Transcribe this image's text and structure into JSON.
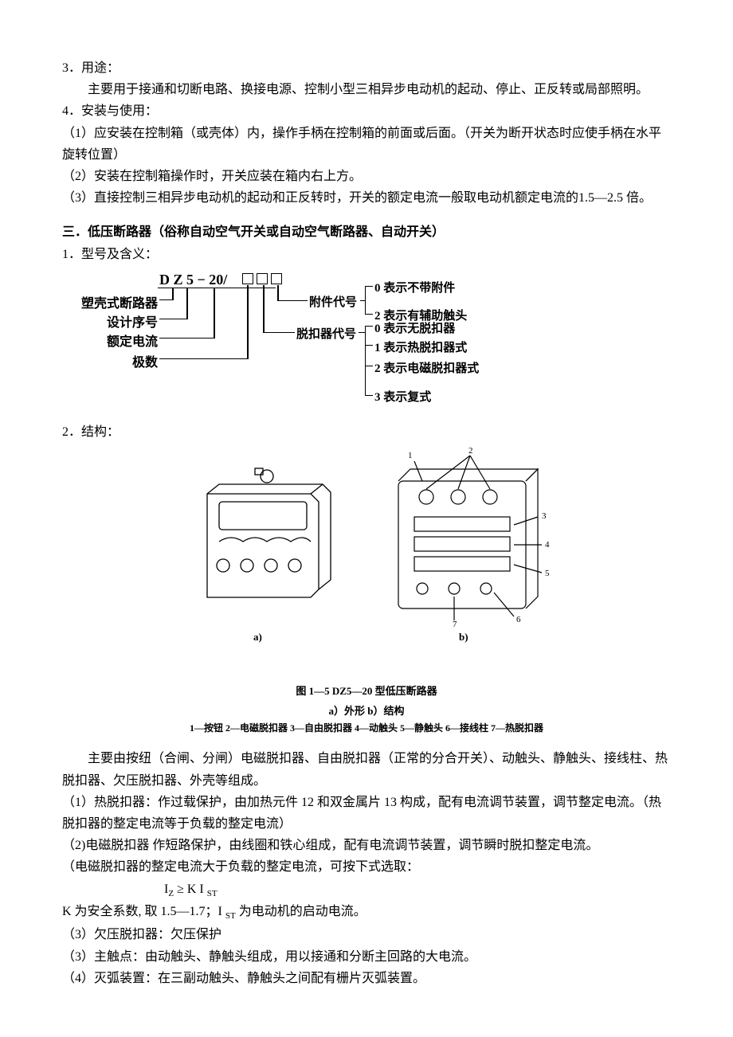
{
  "section3": {
    "title": "3．用途：",
    "p1": "主要用于接通和切断电路、换接电源、控制小型三相异步电动机的起动、停止、正反转或局部照明。"
  },
  "section4": {
    "title": "4．安装与使用：",
    "i1": "（1）应安装在控制箱（或壳体）内，操作手柄在控制箱的前面或后面。（开关为断开状态时应使手柄在水平旋转位置）",
    "i2": "（2）安装在控制箱操作时，开关应装在箱内右上方。",
    "i3": "（3）直接控制三相异步电动机的起动和正反转时，开关的额定电流一般取电动机额定电流的1.5—2.5 倍。"
  },
  "sectionThree": {
    "heading": "三．低压断路器（俗称自动空气开关或自动空气断路器、自动开关）",
    "item1": "1．型号及含义："
  },
  "diagram1": {
    "model": "D Z 5 − 20/",
    "left_labels": [
      "塑壳式断路器",
      "设计序号",
      "额定电流",
      "极数"
    ],
    "mid_labels": [
      "附件代号",
      "脱扣器代号"
    ],
    "right_labels": [
      "0 表示不带附件",
      "2 表示有辅助触头",
      "0 表示无脱扣器",
      "1 表示热脱扣器式",
      "2 表示电磁脱扣器式",
      "3 表示复式"
    ]
  },
  "item2": "2．结构：",
  "diagram2": {
    "sub_a": "a)",
    "sub_b": "b)",
    "caption": "图 1—5    DZ5—20 型低压断路器",
    "caption2": "a）外形    b）结构",
    "legend": "1—按钮   2—电磁脱扣器   3—自由脱扣器   4—动触头   5—静触头   6—接线柱   7—热脱扣器"
  },
  "body": {
    "p1": "主要由按纽（合闸、分闸）电磁脱扣器、自由脱扣器（正常的分合开关）、动触头、静触头、接线柱、热脱扣器、欠压脱扣器、外壳等组成。",
    "i1": "（1）热脱扣器：作过载保护，由加热元件 12 和双金属片 13 构成，配有电流调节装置，调节整定电流。（热脱扣器的整定电流等于负载的整定电流）",
    "i2a": "（2)电磁脱扣器 作短路保护，由线圈和铁心组成，配有电流调节装置，调节瞬时脱扣整定电流。",
    "i2b": "（电磁脱扣器的整定电流大于负载的整定电流，可按下式选取：",
    "formula_html": "I<sub>Z</sub> ≥ K I <sub>ST</sub>",
    "k_note": "K 为安全系数, 取 1.5—1.7；I <sub>ST</sub> 为电动机的启动电流。",
    "i3": "（3）欠压脱扣器：欠压保护",
    "i3b": "（3）主触点：由动触头、静触头组成，用以接通和分断主回路的大电流。",
    "i4": "（4）灭弧装置：在三副动触头、静触头之间配有栅片灭弧装置。"
  }
}
